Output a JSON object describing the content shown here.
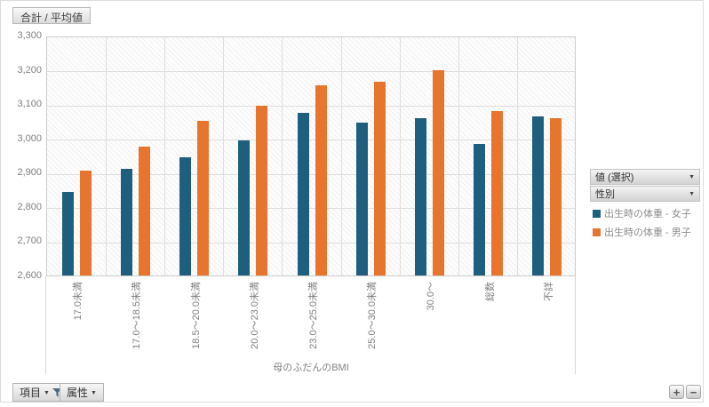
{
  "header": {
    "summary_button": "合計 / 平均値"
  },
  "chart_data": {
    "type": "bar",
    "title": "",
    "categories": [
      "17.0未満",
      "17.0～18.5未満",
      "18.5～20.0未満",
      "20.0～23.0未満",
      "23.0～25.0未満",
      "25.0～30.0未満",
      "30.0～",
      "総数",
      "不詳"
    ],
    "series": [
      {
        "name": "出生時の体重 - 女子",
        "color": "#1F5F7E",
        "values": [
          2845,
          2910,
          2945,
          2995,
          3075,
          3045,
          3060,
          2985,
          3065
        ]
      },
      {
        "name": "出生時の体重 - 男子",
        "color": "#E8752E",
        "values": [
          2905,
          2975,
          3050,
          3095,
          3155,
          3165,
          3200,
          3080,
          3060
        ]
      }
    ],
    "xlabel": "母のふだんのBMI",
    "ylabel": "",
    "ylim": [
      2600,
      3300
    ],
    "ytick_step": 100,
    "grid": true,
    "legend_position": "right"
  },
  "side_panel": {
    "dropdowns": [
      {
        "label": "値 (選択)"
      },
      {
        "label": "性別"
      }
    ]
  },
  "footer": {
    "item_button": "項目",
    "attribute_button": "属性",
    "zoom_in_button": "+",
    "zoom_out_button": "−"
  }
}
